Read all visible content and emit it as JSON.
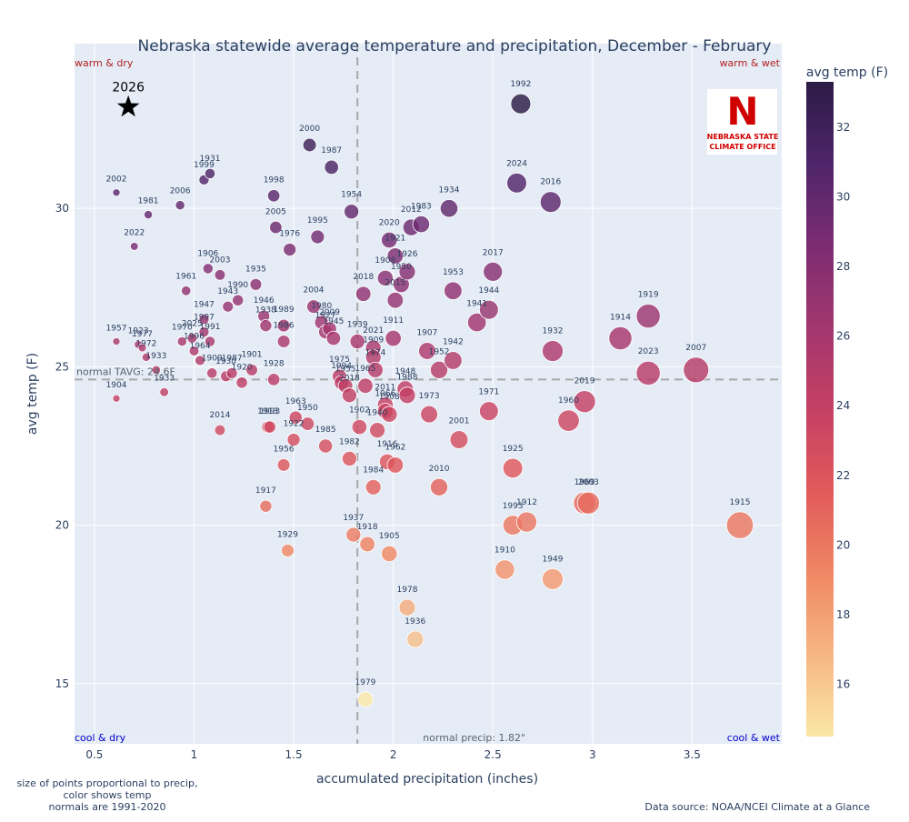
{
  "chart_data": {
    "type": "scatter",
    "title": "Nebraska statewide average temperature and precipitation, December - February",
    "xlabel": "accumulated precipitation (inches)",
    "ylabel": "avg temp (F)",
    "xlim": [
      0.4,
      3.95
    ],
    "ylim": [
      13.1,
      35.2
    ],
    "x_ticks": [
      0.5,
      1,
      1.5,
      2,
      2.5,
      3,
      3.5
    ],
    "x_tick_labels": [
      "0.5",
      "1",
      "1.5",
      "2",
      "2.5",
      "3",
      "3.5"
    ],
    "y_ticks": [
      15,
      20,
      25,
      30
    ],
    "y_tick_labels": [
      "15",
      "20",
      "25",
      "30"
    ],
    "grid": true,
    "normal_tavg": 24.6,
    "normal_tavg_label": "normal TAVG: 24.6F",
    "normal_precip": 1.82,
    "normal_precip_label": "normal precip: 1.82\"",
    "quadrant_labels": {
      "top_left": "warm & dry",
      "top_right": "warm & wet",
      "bottom_left": "cool & dry",
      "bottom_right": "cool & wet"
    },
    "colorbar": {
      "title": "avg temp (F)",
      "ticks": [
        16,
        18,
        20,
        22,
        24,
        26,
        28,
        30,
        32
      ],
      "tick_labels": [
        "16",
        "18",
        "20",
        "22",
        "24",
        "26",
        "28",
        "30",
        "32"
      ],
      "min": 14.5,
      "max": 33.3,
      "colors": [
        "#fbe7a6",
        "#f6b683",
        "#ef8764",
        "#e15a5b",
        "#c54064",
        "#a2366e",
        "#7c2c72",
        "#4f2569",
        "#2b1b46"
      ]
    },
    "highlight": {
      "label": "2026",
      "x": 0.67,
      "y": 33.2,
      "marker": "star"
    },
    "points": [
      {
        "year": "1992",
        "x": 2.64,
        "y": 33.3
      },
      {
        "year": "2000",
        "x": 1.58,
        "y": 32.0
      },
      {
        "year": "1987",
        "x": 1.69,
        "y": 31.3
      },
      {
        "year": "1931",
        "x": 1.08,
        "y": 31.1
      },
      {
        "year": "1999",
        "x": 1.05,
        "y": 30.9
      },
      {
        "year": "2024",
        "x": 2.62,
        "y": 30.8
      },
      {
        "year": "2002",
        "x": 0.61,
        "y": 30.5
      },
      {
        "year": "1998",
        "x": 1.4,
        "y": 30.4
      },
      {
        "year": "2016",
        "x": 2.79,
        "y": 30.2
      },
      {
        "year": "2006",
        "x": 0.93,
        "y": 30.1
      },
      {
        "year": "1934",
        "x": 2.28,
        "y": 30.0
      },
      {
        "year": "1954",
        "x": 1.79,
        "y": 29.9
      },
      {
        "year": "1981",
        "x": 0.77,
        "y": 29.8
      },
      {
        "year": "1983",
        "x": 2.14,
        "y": 29.5
      },
      {
        "year": "2012",
        "x": 2.09,
        "y": 29.4
      },
      {
        "year": "2005",
        "x": 1.41,
        "y": 29.4
      },
      {
        "year": "1995",
        "x": 1.62,
        "y": 29.1
      },
      {
        "year": "2020",
        "x": 1.98,
        "y": 29.0
      },
      {
        "year": "2022",
        "x": 0.7,
        "y": 28.8
      },
      {
        "year": "1976",
        "x": 1.48,
        "y": 28.7
      },
      {
        "year": "1921",
        "x": 2.01,
        "y": 28.5
      },
      {
        "year": "1906",
        "x": 1.07,
        "y": 28.1
      },
      {
        "year": "2017",
        "x": 2.5,
        "y": 28.0
      },
      {
        "year": "1926",
        "x": 2.07,
        "y": 28.0
      },
      {
        "year": "1908",
        "x": 1.96,
        "y": 27.8
      },
      {
        "year": "1950",
        "x": 2.04,
        "y": 27.6
      },
      {
        "year": "2003",
        "x": 1.13,
        "y": 27.9
      },
      {
        "year": "1935",
        "x": 1.31,
        "y": 27.6
      },
      {
        "year": "1953",
        "x": 2.3,
        "y": 27.4
      },
      {
        "year": "1961",
        "x": 0.96,
        "y": 27.4
      },
      {
        "year": "2018",
        "x": 1.85,
        "y": 27.3
      },
      {
        "year": "1990",
        "x": 1.22,
        "y": 27.1
      },
      {
        "year": "2015",
        "x": 2.01,
        "y": 27.1
      },
      {
        "year": "2004",
        "x": 1.6,
        "y": 26.9
      },
      {
        "year": "1943",
        "x": 1.17,
        "y": 26.9
      },
      {
        "year": "1944",
        "x": 2.48,
        "y": 26.8
      },
      {
        "year": "1919",
        "x": 3.28,
        "y": 26.6
      },
      {
        "year": "1946",
        "x": 1.35,
        "y": 26.6
      },
      {
        "year": "1941",
        "x": 2.42,
        "y": 26.4
      },
      {
        "year": "1947",
        "x": 1.05,
        "y": 26.5
      },
      {
        "year": "1938",
        "x": 1.36,
        "y": 26.3
      },
      {
        "year": "1989",
        "x": 1.45,
        "y": 26.3
      },
      {
        "year": "1980",
        "x": 1.64,
        "y": 26.4
      },
      {
        "year": "1927",
        "x": 1.66,
        "y": 26.1
      },
      {
        "year": "2009",
        "x": 1.68,
        "y": 26.2
      },
      {
        "year": "1945",
        "x": 1.7,
        "y": 25.9
      },
      {
        "year": "1997",
        "x": 1.05,
        "y": 26.1
      },
      {
        "year": "1986",
        "x": 1.45,
        "y": 25.8
      },
      {
        "year": "2025",
        "x": 0.99,
        "y": 25.9
      },
      {
        "year": "1970",
        "x": 0.94,
        "y": 25.8
      },
      {
        "year": "1991",
        "x": 1.08,
        "y": 25.8
      },
      {
        "year": "1939",
        "x": 1.82,
        "y": 25.8
      },
      {
        "year": "2021",
        "x": 1.9,
        "y": 25.6
      },
      {
        "year": "1911",
        "x": 2.0,
        "y": 25.9
      },
      {
        "year": "1914",
        "x": 3.14,
        "y": 25.9
      },
      {
        "year": "1996",
        "x": 1.0,
        "y": 25.5
      },
      {
        "year": "1957",
        "x": 0.61,
        "y": 25.8
      },
      {
        "year": "1923",
        "x": 0.72,
        "y": 25.7
      },
      {
        "year": "1977",
        "x": 0.74,
        "y": 25.6
      },
      {
        "year": "1907",
        "x": 2.17,
        "y": 25.5
      },
      {
        "year": "1932",
        "x": 2.8,
        "y": 25.5
      },
      {
        "year": "1909",
        "x": 1.9,
        "y": 25.3
      },
      {
        "year": "1964",
        "x": 1.03,
        "y": 25.2
      },
      {
        "year": "1972",
        "x": 0.76,
        "y": 25.3
      },
      {
        "year": "1942",
        "x": 2.3,
        "y": 25.2
      },
      {
        "year": "1901",
        "x": 1.29,
        "y": 24.9
      },
      {
        "year": "1952",
        "x": 2.23,
        "y": 24.9
      },
      {
        "year": "1974",
        "x": 1.91,
        "y": 24.9
      },
      {
        "year": "2007",
        "x": 3.52,
        "y": 24.9
      },
      {
        "year": "1930",
        "x": 1.16,
        "y": 24.7
      },
      {
        "year": "1909",
        "x": 1.09,
        "y": 24.8
      },
      {
        "year": "1987",
        "x": 1.19,
        "y": 24.8
      },
      {
        "year": "1933",
        "x": 0.81,
        "y": 24.9
      },
      {
        "year": "1975",
        "x": 1.73,
        "y": 24.7
      },
      {
        "year": "2023",
        "x": 3.28,
        "y": 24.8
      },
      {
        "year": "1994",
        "x": 1.74,
        "y": 24.5
      },
      {
        "year": "1928",
        "x": 1.4,
        "y": 24.6
      },
      {
        "year": "1965",
        "x": 1.86,
        "y": 24.4
      },
      {
        "year": "1955",
        "x": 1.76,
        "y": 24.4
      },
      {
        "year": "1920",
        "x": 1.24,
        "y": 24.5
      },
      {
        "year": "1948",
        "x": 2.06,
        "y": 24.3
      },
      {
        "year": "2018",
        "x": 1.78,
        "y": 24.1
      },
      {
        "year": "1988",
        "x": 2.07,
        "y": 24.1
      },
      {
        "year": "1933",
        "x": 0.85,
        "y": 24.2
      },
      {
        "year": "2019",
        "x": 2.96,
        "y": 23.9
      },
      {
        "year": "2011",
        "x": 1.96,
        "y": 23.8
      },
      {
        "year": "1966",
        "x": 1.96,
        "y": 23.6
      },
      {
        "year": "1904",
        "x": 0.61,
        "y": 24.0
      },
      {
        "year": "1963",
        "x": 1.51,
        "y": 23.4
      },
      {
        "year": "1908",
        "x": 1.98,
        "y": 23.5
      },
      {
        "year": "1973",
        "x": 2.18,
        "y": 23.5
      },
      {
        "year": "1971",
        "x": 2.48,
        "y": 23.6
      },
      {
        "year": "1960",
        "x": 2.88,
        "y": 23.3
      },
      {
        "year": "1950",
        "x": 1.57,
        "y": 23.2
      },
      {
        "year": "1902",
        "x": 1.83,
        "y": 23.1
      },
      {
        "year": "1940",
        "x": 1.92,
        "y": 23.0
      },
      {
        "year": "1993",
        "x": 1.38,
        "y": 23.1
      },
      {
        "year": "1913",
        "x": 1.37,
        "y": 23.1
      },
      {
        "year": "1922",
        "x": 1.5,
        "y": 22.7
      },
      {
        "year": "2001",
        "x": 2.33,
        "y": 22.7
      },
      {
        "year": "1985",
        "x": 1.66,
        "y": 22.5
      },
      {
        "year": "2014",
        "x": 1.13,
        "y": 23.0
      },
      {
        "year": "1982",
        "x": 1.78,
        "y": 22.1
      },
      {
        "year": "1916",
        "x": 1.97,
        "y": 22.0
      },
      {
        "year": "1956",
        "x": 1.45,
        "y": 21.9
      },
      {
        "year": "1962",
        "x": 2.01,
        "y": 21.9
      },
      {
        "year": "1925",
        "x": 2.6,
        "y": 21.8
      },
      {
        "year": "2010",
        "x": 2.23,
        "y": 21.2
      },
      {
        "year": "1984",
        "x": 1.9,
        "y": 21.2
      },
      {
        "year": "1917",
        "x": 1.36,
        "y": 20.6
      },
      {
        "year": "1969",
        "x": 2.96,
        "y": 20.7
      },
      {
        "year": "2003",
        "x": 2.98,
        "y": 20.7
      },
      {
        "year": "1912",
        "x": 2.67,
        "y": 20.1
      },
      {
        "year": "1993",
        "x": 2.6,
        "y": 20.0
      },
      {
        "year": "1915",
        "x": 3.74,
        "y": 20.0
      },
      {
        "year": "1937",
        "x": 1.8,
        "y": 19.7
      },
      {
        "year": "1918",
        "x": 1.87,
        "y": 19.4
      },
      {
        "year": "1929",
        "x": 1.47,
        "y": 19.2
      },
      {
        "year": "1905",
        "x": 1.98,
        "y": 19.1
      },
      {
        "year": "1910",
        "x": 2.56,
        "y": 18.6
      },
      {
        "year": "1949",
        "x": 2.8,
        "y": 18.3
      },
      {
        "year": "1978",
        "x": 2.07,
        "y": 17.4
      },
      {
        "year": "1936",
        "x": 2.11,
        "y": 16.4
      },
      {
        "year": "1979",
        "x": 1.86,
        "y": 14.5
      }
    ],
    "notes": [
      "size of points proportional to precip,",
      "color shows temp",
      "normals are 1991-2020"
    ],
    "source": "Data source: NOAA/NCEI Climate at a Glance",
    "logo": {
      "line1": "NEBRASKA STATE",
      "line2": "CLIMATE OFFICE",
      "color": "#d00000"
    }
  }
}
